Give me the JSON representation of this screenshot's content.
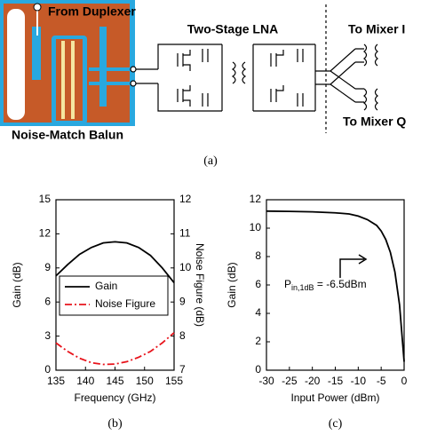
{
  "figure_a": {
    "from_duplexer": "From Duplexer",
    "lna": "Two-Stage LNA",
    "mixer_i": "To Mixer I",
    "mixer_q": "To Mixer Q",
    "balun": "Noise-Match Balun",
    "caption": "(a)"
  },
  "chart_data": [
    {
      "type": "line",
      "caption": "(b)",
      "x_label": "Frequency (GHz)",
      "y_label": "Gain (dB)",
      "y2_label": "Noise Figure (dB)",
      "x": [
        135,
        137,
        139,
        141,
        143,
        145,
        147,
        149,
        151,
        153,
        155
      ],
      "xlim": [
        135,
        155
      ],
      "xticks": [
        135,
        140,
        145,
        150,
        155
      ],
      "ylim": [
        0,
        15
      ],
      "yticks": [
        0,
        3,
        6,
        9,
        12,
        15
      ],
      "y2lim": [
        7,
        12
      ],
      "y2ticks": [
        7,
        8,
        9,
        10,
        11,
        12
      ],
      "legend": "left",
      "series": [
        {
          "name": "Gain",
          "color": "#000000",
          "style": "solid",
          "values": [
            8.3,
            9.3,
            10.2,
            10.8,
            11.2,
            11.3,
            11.2,
            10.8,
            10.1,
            9.0,
            7.7
          ]
        },
        {
          "name": "Noise Figure",
          "color": "#e8141c",
          "style": "dashdot",
          "axis": "y2",
          "values": [
            7.8,
            7.55,
            7.35,
            7.22,
            7.17,
            7.18,
            7.25,
            7.38,
            7.55,
            7.8,
            8.1
          ]
        }
      ]
    },
    {
      "type": "line",
      "caption": "(c)",
      "x_label": "Input Power (dBm)",
      "y_label": "Gain (dB)",
      "x": [
        -30,
        -25,
        -20,
        -15,
        -12,
        -10,
        -8,
        -6,
        -5,
        -4,
        -3,
        -2,
        -1,
        0
      ],
      "xlim": [
        -30,
        0
      ],
      "xticks": [
        -30,
        -25,
        -20,
        -15,
        -10,
        -5,
        0
      ],
      "ylim": [
        0,
        12
      ],
      "yticks": [
        0,
        2,
        4,
        6,
        8,
        10,
        12
      ],
      "annotation": {
        "symbol": "P",
        "subscript": "in,1dB",
        "text": " = -6.5dBm"
      },
      "series": [
        {
          "color": "#000000",
          "style": "solid",
          "values": [
            11.2,
            11.18,
            11.15,
            11.08,
            11.0,
            10.85,
            10.6,
            10.2,
            9.8,
            9.2,
            8.3,
            6.9,
            4.6,
            0.6
          ]
        }
      ]
    }
  ]
}
